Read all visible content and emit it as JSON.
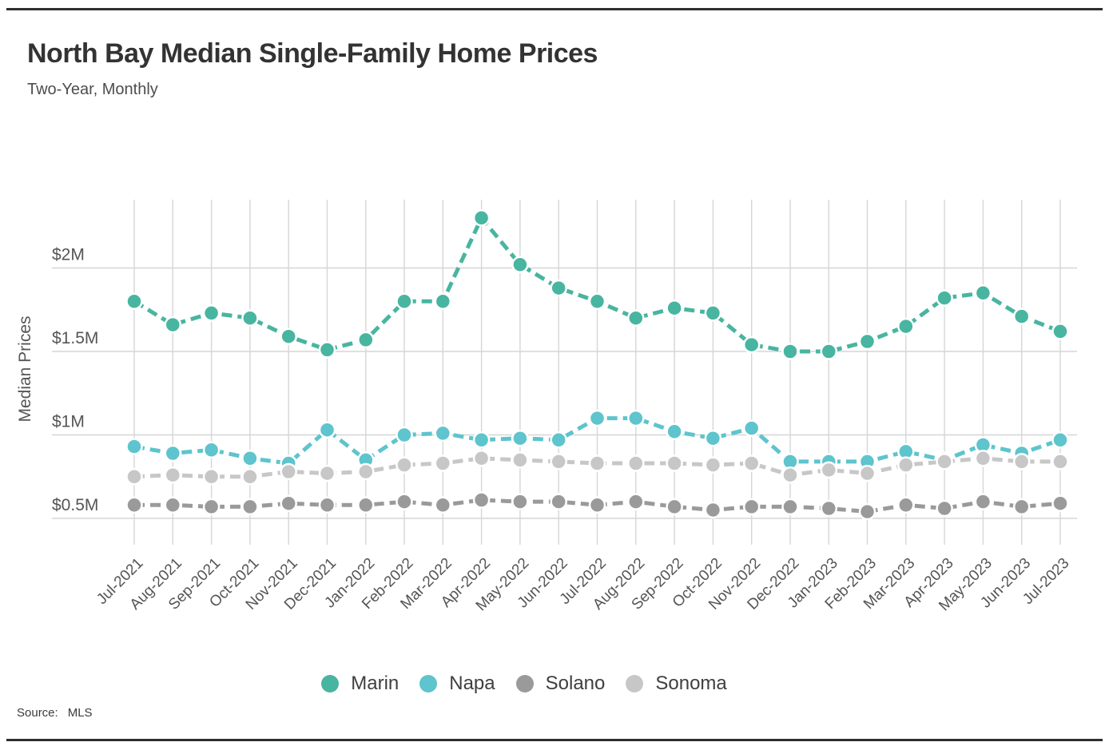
{
  "header": {
    "title": "North Bay Median Single-Family Home Prices",
    "subtitle": "Two-Year, Monthly"
  },
  "source": {
    "label": "Source:",
    "value": "MLS"
  },
  "chart_data": {
    "type": "line",
    "title": "North Bay Median Single-Family Home Prices",
    "subtitle": "Two-Year, Monthly",
    "xlabel": "",
    "ylabel": "Median Prices",
    "unit": "million USD",
    "grid": true,
    "legend_position": "bottom",
    "marker": "circle",
    "line_style": "dashed",
    "ylim": [
      0.34,
      2.41
    ],
    "y_ticks": [
      {
        "value": 2.0,
        "label": "$2M"
      },
      {
        "value": 1.5,
        "label": "$1.5M"
      },
      {
        "value": 1.0,
        "label": "$1M"
      },
      {
        "value": 0.5,
        "label": "$0.5M"
      }
    ],
    "categories": [
      "Jul-2021",
      "Aug-2021",
      "Sep-2021",
      "Oct-2021",
      "Nov-2021",
      "Dec-2021",
      "Jan-2022",
      "Feb-2022",
      "Mar-2022",
      "Apr-2022",
      "May-2022",
      "Jun-2022",
      "Jul-2022",
      "Aug-2022",
      "Sep-2022",
      "Oct-2022",
      "Nov-2022",
      "Dec-2022",
      "Jan-2023",
      "Feb-2023",
      "Mar-2023",
      "Apr-2023",
      "May-2023",
      "Jun-2023",
      "Jul-2023"
    ],
    "series": [
      {
        "name": "Marin",
        "color": "#48b5a0",
        "values": [
          1.8,
          1.66,
          1.73,
          1.7,
          1.59,
          1.51,
          1.57,
          1.8,
          1.8,
          2.3,
          2.02,
          1.88,
          1.8,
          1.7,
          1.76,
          1.73,
          1.54,
          1.5,
          1.5,
          1.56,
          1.65,
          1.82,
          1.85,
          1.71,
          1.62
        ]
      },
      {
        "name": "Napa",
        "color": "#5ec4cd",
        "values": [
          0.93,
          0.89,
          0.91,
          0.86,
          0.83,
          1.03,
          0.85,
          1.0,
          1.01,
          0.97,
          0.98,
          0.97,
          1.1,
          1.1,
          1.02,
          0.98,
          1.04,
          0.84,
          0.84,
          0.84,
          0.9,
          0.85,
          0.94,
          0.89,
          0.97
        ]
      },
      {
        "name": "Solano",
        "color": "#9a9a9a",
        "values": [
          0.58,
          0.58,
          0.57,
          0.57,
          0.59,
          0.58,
          0.58,
          0.6,
          0.58,
          0.61,
          0.6,
          0.6,
          0.58,
          0.6,
          0.57,
          0.55,
          0.57,
          0.57,
          0.56,
          0.54,
          0.58,
          0.56,
          0.6,
          0.57,
          0.59
        ]
      },
      {
        "name": "Sonoma",
        "color": "#c7c7c7",
        "values": [
          0.75,
          0.76,
          0.75,
          0.75,
          0.78,
          0.77,
          0.78,
          0.82,
          0.83,
          0.86,
          0.85,
          0.84,
          0.83,
          0.83,
          0.83,
          0.82,
          0.83,
          0.76,
          0.79,
          0.77,
          0.82,
          0.84,
          0.86,
          0.84,
          0.84
        ]
      }
    ],
    "style": {
      "grid_color": "#d6d6d6",
      "tick_label_color": "#555555",
      "axis_title_color": "#555555"
    }
  }
}
